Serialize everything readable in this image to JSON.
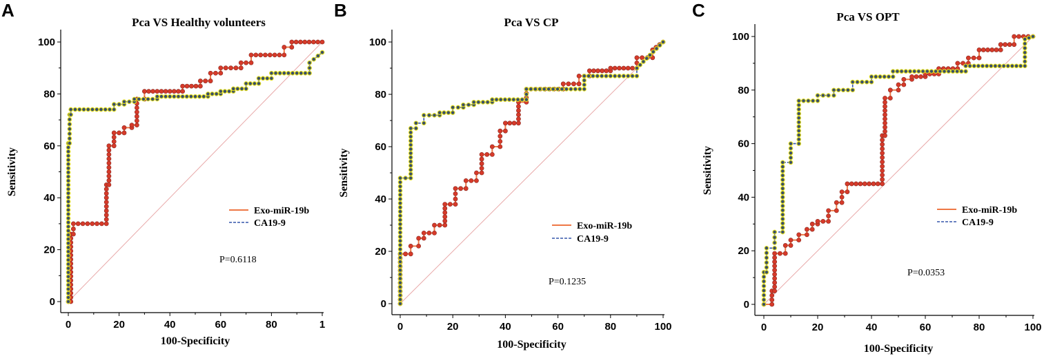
{
  "chart_data": [
    {
      "type": "line",
      "panel_letter": "A",
      "title": "Pca VS Healthy volunteers",
      "xlabel": "100-Specificity",
      "ylabel": "Sensitivity",
      "xlim": [
        0,
        100
      ],
      "ylim": [
        0,
        100
      ],
      "xticks": [
        "0",
        "20",
        "40",
        "60",
        "80",
        "1"
      ],
      "yticks": [
        "0",
        "20",
        "40",
        "60",
        "80",
        "100"
      ],
      "legend": [
        "Exo-miR-19b",
        "CA19-9"
      ],
      "p_value": "P=0.6118",
      "colors": {
        "exo": "#ee7744",
        "exo_marker": "#d63a2a",
        "ca": "#3355aa",
        "ca_marker": "#3a4f66",
        "ca_marker_ring": "#e6e020",
        "diagonal": "#e8a8a8"
      },
      "series": [
        {
          "name": "Exo-miR-19b",
          "x": [
            0,
            1,
            1,
            2,
            2,
            15,
            15,
            16,
            16,
            18,
            18,
            22,
            22,
            25,
            25,
            27,
            27,
            30,
            30,
            45,
            45,
            52,
            52,
            56,
            56,
            60,
            60,
            68,
            68,
            72,
            72,
            85,
            85,
            88,
            88,
            100
          ],
          "y": [
            0,
            0,
            26,
            26,
            30,
            30,
            45,
            45,
            60,
            60,
            65,
            65,
            67,
            67,
            68,
            68,
            78,
            78,
            81,
            81,
            83,
            83,
            85,
            85,
            88,
            88,
            90,
            90,
            92,
            92,
            95,
            95,
            98,
            98,
            100,
            100
          ]
        },
        {
          "name": "CA19-9",
          "x": [
            0,
            0,
            0.5,
            0.5,
            1,
            1,
            18,
            18,
            22,
            22,
            26,
            26,
            35,
            35,
            55,
            55,
            60,
            60,
            65,
            65,
            70,
            70,
            75,
            75,
            80,
            80,
            95,
            95,
            100
          ],
          "y": [
            0,
            61,
            61,
            72,
            72,
            74,
            74,
            76,
            76,
            77,
            77,
            78,
            78,
            79,
            79,
            80,
            80,
            81,
            81,
            82,
            82,
            84,
            84,
            86,
            86,
            88,
            88,
            92,
            96
          ]
        }
      ]
    },
    {
      "type": "line",
      "panel_letter": "B",
      "title": "Pca VS CP",
      "xlabel": "100-Specificity",
      "ylabel": "Sensitivity",
      "xlim": [
        0,
        100
      ],
      "ylim": [
        0,
        100
      ],
      "xticks": [
        "0",
        "20",
        "40",
        "60",
        "80",
        "100"
      ],
      "yticks": [
        "0",
        "20",
        "40",
        "60",
        "80",
        "100"
      ],
      "legend": [
        "Exo-miR-19b",
        "CA19-9"
      ],
      "p_value": "P=0.1235",
      "colors": {
        "exo": "#ee7744",
        "exo_marker": "#d63a2a",
        "ca": "#3355aa",
        "ca_marker": "#3a4f66",
        "ca_marker_ring": "#e6e020",
        "diagonal": "#e8a8a8"
      },
      "series": [
        {
          "name": "Exo-miR-19b",
          "x": [
            0,
            0,
            4,
            4,
            7,
            7,
            9,
            9,
            13,
            13,
            17,
            17,
            21,
            21,
            25,
            25,
            29,
            29,
            31,
            31,
            35,
            35,
            38,
            38,
            40,
            40,
            45,
            45,
            48,
            48,
            55,
            55,
            62,
            62,
            68,
            68,
            72,
            72,
            80,
            80,
            90,
            90,
            96,
            96,
            100
          ],
          "y": [
            0,
            19,
            19,
            22,
            22,
            25,
            25,
            27,
            27,
            30,
            30,
            38,
            38,
            44,
            44,
            47,
            47,
            50,
            50,
            57,
            57,
            60,
            60,
            66,
            66,
            69,
            69,
            77,
            77,
            82,
            82,
            82,
            82,
            84,
            84,
            87,
            87,
            89,
            89,
            90,
            90,
            94,
            94,
            97,
            100
          ]
        },
        {
          "name": "CA19-9",
          "x": [
            0,
            0,
            4,
            4,
            6,
            6,
            9,
            9,
            15,
            15,
            20,
            20,
            24,
            24,
            28,
            28,
            35,
            35,
            48,
            48,
            70,
            70,
            90,
            90,
            100
          ],
          "y": [
            0,
            48,
            48,
            67,
            67,
            69,
            69,
            72,
            72,
            73,
            73,
            75,
            75,
            76,
            76,
            77,
            77,
            78,
            78,
            82,
            82,
            87,
            87,
            90,
            100
          ]
        }
      ]
    },
    {
      "type": "line",
      "panel_letter": "C",
      "title": "Pca VS OPT",
      "xlabel": "100-Specificity",
      "ylabel": "Sensitivity",
      "xlim": [
        0,
        100
      ],
      "ylim": [
        0,
        100
      ],
      "xticks": [
        "0",
        "20",
        "40",
        "60",
        "80",
        "100"
      ],
      "yticks": [
        "0",
        "20",
        "40",
        "60",
        "80",
        "100"
      ],
      "legend": [
        "Exo-miR-19b",
        "CA19-9"
      ],
      "p_value": "P=0.0353",
      "colors": {
        "exo": "#ee7744",
        "exo_marker": "#d63a2a",
        "ca": "#3355aa",
        "ca_marker": "#3a4f66",
        "ca_marker_ring": "#e6e020",
        "diagonal": "#e8a8a8"
      },
      "series": [
        {
          "name": "Exo-miR-19b",
          "x": [
            0,
            3,
            3,
            4,
            4,
            8,
            8,
            10,
            10,
            13,
            13,
            16,
            16,
            18,
            18,
            20,
            20,
            24,
            24,
            27,
            27,
            29,
            29,
            31,
            31,
            44,
            44,
            45,
            45,
            47,
            47,
            50,
            50,
            52,
            52,
            55,
            55,
            60,
            60,
            65,
            65,
            72,
            72,
            76,
            76,
            80,
            80,
            88,
            88,
            93,
            93,
            100
          ],
          "y": [
            0,
            0,
            5,
            5,
            19,
            19,
            22,
            22,
            24,
            24,
            26,
            26,
            28,
            28,
            30,
            30,
            31,
            31,
            35,
            35,
            38,
            38,
            42,
            42,
            45,
            45,
            63,
            63,
            77,
            77,
            80,
            80,
            82,
            82,
            84,
            84,
            85,
            85,
            86,
            86,
            88,
            88,
            90,
            90,
            92,
            92,
            95,
            95,
            97,
            97,
            100,
            100
          ]
        },
        {
          "name": "CA19-9",
          "x": [
            0,
            0,
            1,
            1,
            4,
            4,
            7,
            7,
            10,
            10,
            13,
            13,
            20,
            20,
            26,
            26,
            33,
            33,
            40,
            40,
            48,
            48,
            75,
            75,
            97,
            97,
            100
          ],
          "y": [
            0,
            12,
            12,
            21,
            21,
            27,
            27,
            53,
            53,
            60,
            60,
            76,
            76,
            78,
            78,
            80,
            80,
            83,
            83,
            85,
            85,
            87,
            87,
            89,
            89,
            99,
            100
          ]
        }
      ]
    }
  ]
}
